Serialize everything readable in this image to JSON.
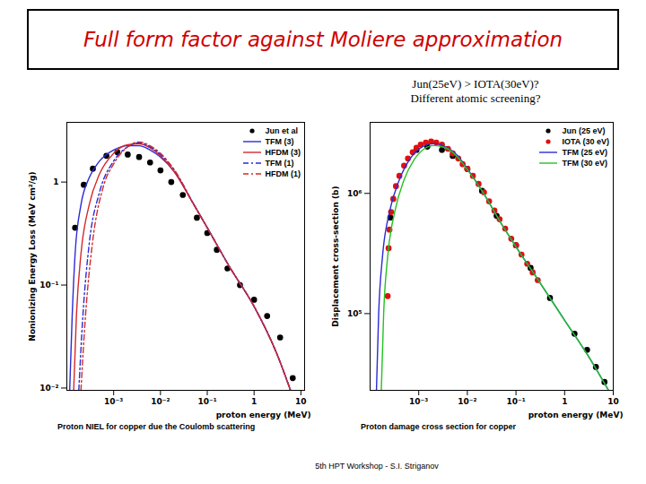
{
  "title": "Full form factor against Moliere approximation",
  "annotation": [
    "Jun(25eV) > IOTA(30eV)?",
    "Different atomic screening?"
  ],
  "footer": "5th HPT Workshop - S.I. Striganov",
  "chart_data": [
    {
      "type": "line",
      "caption": "Proton NIEL for copper due the Coulomb scattering",
      "xlabel": "proton energy (MeV)",
      "ylabel": "Nonionizing Energy Loss (MeV cm²/g)",
      "log": true,
      "legend": "top-right",
      "xlim": [
        0.0001,
        12
      ],
      "ylim": [
        0.0095,
        3.8
      ],
      "xticks": [
        {
          "value": 0.001,
          "label": "10⁻³"
        },
        {
          "value": 0.01,
          "label": "10⁻²"
        },
        {
          "value": 0.1,
          "label": "10⁻¹"
        },
        1,
        10
      ],
      "yticks": [
        {
          "value": 0.01,
          "label": "10⁻²"
        },
        {
          "value": 0.1,
          "label": "10⁻¹"
        },
        1
      ],
      "series": [
        {
          "name": "Jun et al",
          "type": "scatter",
          "marker": "circle",
          "color": "#000000",
          "x": [
            0.00015,
            0.00023,
            0.00036,
            0.0007,
            0.0012,
            0.002,
            0.0035,
            0.006,
            0.01,
            0.017,
            0.03,
            0.06,
            0.1,
            0.16,
            0.27,
            0.5,
            1,
            1.9,
            3.6,
            6.7
          ],
          "values": [
            0.36,
            0.94,
            1.35,
            1.8,
            1.95,
            1.85,
            1.75,
            1.55,
            1.3,
            1.0,
            0.75,
            0.45,
            0.32,
            0.22,
            0.145,
            0.1,
            0.072,
            0.05,
            0.031,
            0.0125
          ]
        },
        {
          "name": "TFM (3)",
          "type": "line",
          "line_style": "solid",
          "color": "#2b2bd6",
          "x": [
            0.000115,
            0.00013,
            0.00015,
            0.0002,
            0.0003,
            0.0005,
            0.001,
            0.002,
            0.0035,
            0.006,
            0.01,
            0.02,
            0.05,
            0.1,
            0.3,
            1,
            3,
            6
          ],
          "values": [
            0.0095,
            0.05,
            0.2,
            0.6,
            1.1,
            1.6,
            2.05,
            2.25,
            2.25,
            2.05,
            1.75,
            1.25,
            0.62,
            0.36,
            0.15,
            0.062,
            0.022,
            0.0095
          ]
        },
        {
          "name": "HFDM (3)",
          "type": "line",
          "line_style": "solid",
          "color": "#d42a2a",
          "x": [
            0.00014,
            0.00016,
            0.0002,
            0.0003,
            0.0005,
            0.001,
            0.002,
            0.0035,
            0.006,
            0.01,
            0.02,
            0.05,
            0.1,
            0.3,
            1,
            3,
            6
          ],
          "values": [
            0.0095,
            0.05,
            0.2,
            0.6,
            1.2,
            1.9,
            2.3,
            2.35,
            2.15,
            1.8,
            1.25,
            0.62,
            0.36,
            0.15,
            0.062,
            0.022,
            0.0095
          ]
        },
        {
          "name": "TFM (1)",
          "type": "line",
          "line_style": "dashdot",
          "color": "#2b2bd6",
          "x": [
            0.00018,
            0.00022,
            0.0003,
            0.0005,
            0.001,
            0.002,
            0.0035,
            0.006,
            0.01,
            0.02,
            0.05,
            0.1,
            0.3,
            1,
            3,
            6
          ],
          "values": [
            0.0095,
            0.05,
            0.25,
            0.8,
            1.6,
            2.2,
            2.4,
            2.2,
            1.85,
            1.3,
            0.62,
            0.36,
            0.15,
            0.062,
            0.022,
            0.0095
          ]
        },
        {
          "name": "HFDM (1)",
          "type": "line",
          "line_style": "dashdot",
          "color": "#d42a2a",
          "x": [
            0.0002,
            0.00025,
            0.00035,
            0.0006,
            0.001,
            0.002,
            0.0035,
            0.006,
            0.01,
            0.02,
            0.05,
            0.1,
            0.3,
            1,
            3,
            6
          ],
          "values": [
            0.0095,
            0.05,
            0.25,
            0.9,
            1.5,
            2.2,
            2.45,
            2.25,
            1.9,
            1.3,
            0.62,
            0.36,
            0.15,
            0.062,
            0.022,
            0.0095
          ]
        }
      ]
    },
    {
      "type": "line",
      "caption": "Proton damage cross section for copper",
      "xlabel": "proton energy (MeV)",
      "ylabel": "Displacement cross-section (b)",
      "log": true,
      "legend": "top-right",
      "xlim": [
        0.0001,
        10
      ],
      "ylim": [
        23000,
        3900000
      ],
      "xticks": [
        {
          "value": 0.001,
          "label": "10⁻³"
        },
        {
          "value": 0.01,
          "label": "10⁻²"
        },
        {
          "value": 0.1,
          "label": "10⁻¹"
        },
        1,
        10
      ],
      "yticks": [
        {
          "value": 100000,
          "label": "10⁵"
        },
        {
          "value": 1000000,
          "label": "10⁶"
        }
      ],
      "series": [
        {
          "name": "Jun (25 eV)",
          "type": "scatter",
          "marker": "circle",
          "color": "#000000",
          "x": [
            0.00026,
            0.0009,
            0.0015,
            0.003,
            0.005,
            0.01,
            0.02,
            0.04,
            0.1,
            0.2,
            0.5,
            1.6,
            2.9,
            4.4,
            6.6
          ],
          "values": [
            630000,
            2300000,
            2450000,
            2300000,
            2050000,
            1600000,
            1050000,
            650000,
            370000,
            240000,
            135000,
            68000,
            50000,
            36000,
            27000
          ]
        },
        {
          "name": "IOTA (30 eV)",
          "type": "scatter",
          "marker": "circle",
          "color": "#e01010",
          "x": [
            0.00023,
            0.00024,
            0.00025,
            0.00027,
            0.0003,
            0.00034,
            0.0004,
            0.0005,
            0.0006,
            0.00075,
            0.0009,
            0.0011,
            0.0014,
            0.0018,
            0.0023,
            0.003,
            0.004,
            0.005,
            0.0065,
            0.008,
            0.01,
            0.013,
            0.017,
            0.022,
            0.028,
            0.036,
            0.046,
            0.06,
            0.08,
            0.1,
            0.13,
            0.17,
            0.22,
            0.28
          ],
          "values": [
            140000,
            350000,
            500000,
            700000,
            900000,
            1150000,
            1400000,
            1700000,
            1950000,
            2200000,
            2400000,
            2550000,
            2650000,
            2700000,
            2650000,
            2550000,
            2350000,
            2150000,
            1950000,
            1750000,
            1600000,
            1400000,
            1200000,
            1020000,
            860000,
            720000,
            610000,
            510000,
            420000,
            370000,
            310000,
            260000,
            220000,
            190000
          ]
        },
        {
          "name": "TFM (25 eV)",
          "type": "line",
          "line_style": "solid",
          "color": "#2b2bd6",
          "x": [
            0.000135,
            0.00015,
            0.00018,
            0.00025,
            0.0004,
            0.0007,
            0.0012,
            0.002,
            0.0035,
            0.006,
            0.01,
            0.02,
            0.05,
            0.1,
            0.3,
            1,
            3,
            8
          ],
          "values": [
            23000,
            100000,
            300000,
            700000,
            1300000,
            2000000,
            2450000,
            2600000,
            2450000,
            2100000,
            1600000,
            1050000,
            560000,
            360000,
            185000,
            88000,
            45000,
            23000
          ]
        },
        {
          "name": "TFM (30 eV)",
          "type": "line",
          "line_style": "solid",
          "color": "#22c322",
          "x": [
            0.00017,
            0.00019,
            0.00023,
            0.00032,
            0.0005,
            0.0008,
            0.0013,
            0.002,
            0.0035,
            0.006,
            0.01,
            0.02,
            0.05,
            0.1,
            0.3,
            1,
            3,
            8
          ],
          "values": [
            23000,
            100000,
            300000,
            700000,
            1300000,
            1900000,
            2350000,
            2500000,
            2400000,
            2050000,
            1580000,
            1050000,
            560000,
            360000,
            185000,
            88000,
            45000,
            23000
          ]
        }
      ]
    }
  ]
}
